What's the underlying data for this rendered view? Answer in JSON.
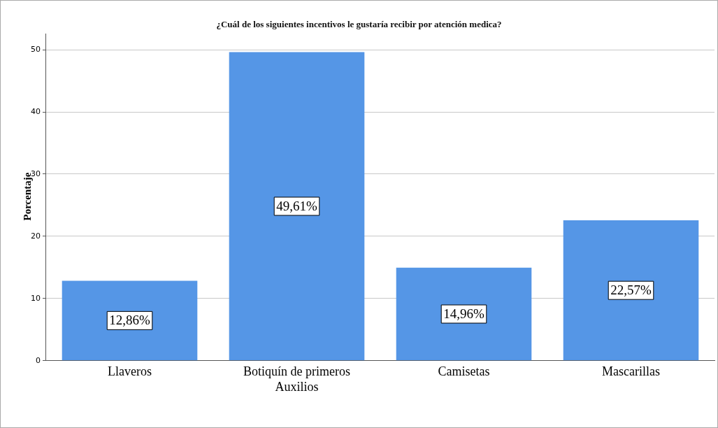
{
  "chart_data": {
    "type": "bar",
    "title": "¿Cuál de los siguientes incentivos le gustaría recibir por atención medica?",
    "ylabel": "Porcentaje",
    "categories": [
      "Llaveros",
      "Botiquín de primeros Auxilios",
      "Camisetas",
      "Mascarillas"
    ],
    "values": [
      12.86,
      49.61,
      14.96,
      22.57
    ],
    "value_labels": [
      "12,86%",
      "49,61%",
      "14,96%",
      "22,57%"
    ],
    "color": "#5596e6",
    "ylim": [
      0,
      52.6
    ],
    "yticks": [
      0,
      10,
      20,
      30,
      40,
      50
    ],
    "grid": "y",
    "legend": false
  }
}
